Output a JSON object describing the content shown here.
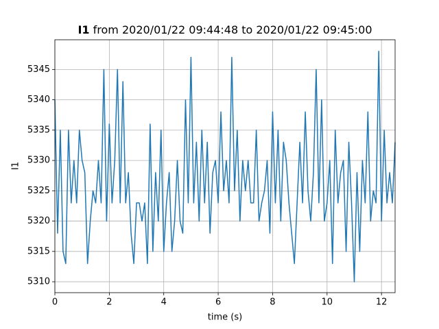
{
  "chart_data": {
    "type": "line",
    "title_variable": "I1",
    "title": "from 2020/01/22 09:44:48 to 2020/01/22 09:45:00",
    "x_label": "time (s)",
    "y_label": "I1",
    "x": [
      0,
      0.1,
      0.2,
      0.3,
      0.4,
      0.5,
      0.6,
      0.7,
      0.8,
      0.9,
      1,
      1.1,
      1.2,
      1.3,
      1.4,
      1.5,
      1.6,
      1.7,
      1.8,
      1.9,
      2,
      2.1,
      2.2,
      2.3,
      2.4,
      2.5,
      2.6,
      2.7,
      2.8,
      2.9,
      3,
      3.1,
      3.2,
      3.3,
      3.4,
      3.5,
      3.6,
      3.7,
      3.8,
      3.9,
      4,
      4.1,
      4.2,
      4.3,
      4.4,
      4.5,
      4.6,
      4.7,
      4.8,
      4.9,
      5,
      5.1,
      5.2,
      5.3,
      5.4,
      5.5,
      5.6,
      5.7,
      5.8,
      5.9,
      6,
      6.1,
      6.2,
      6.3,
      6.4,
      6.5,
      6.6,
      6.7,
      6.8,
      6.9,
      7,
      7.1,
      7.2,
      7.3,
      7.4,
      7.5,
      7.6,
      7.7,
      7.8,
      7.9,
      8,
      8.1,
      8.2,
      8.3,
      8.4,
      8.5,
      8.6,
      8.7,
      8.8,
      8.9,
      9,
      9.1,
      9.2,
      9.3,
      9.4,
      9.5,
      9.6,
      9.7,
      9.8,
      9.9,
      10,
      10.1,
      10.2,
      10.3,
      10.4,
      10.5,
      10.6,
      10.7,
      10.8,
      10.9,
      11,
      11.1,
      11.2,
      11.3,
      11.4,
      11.5,
      11.6,
      11.7,
      11.8,
      11.9,
      12,
      12.1,
      12.2,
      12.3,
      12.4,
      12.5
    ],
    "values": [
      5340,
      5318,
      5335,
      5315,
      5313,
      5335,
      5323,
      5330,
      5323,
      5335,
      5330,
      5328,
      5313,
      5320,
      5325,
      5323,
      5330,
      5323,
      5345,
      5320,
      5336,
      5323,
      5330,
      5345,
      5323,
      5343,
      5323,
      5328,
      5318,
      5313,
      5323,
      5323,
      5320,
      5323,
      5313,
      5336,
      5315,
      5328,
      5320,
      5335,
      5315,
      5323,
      5328,
      5315,
      5320,
      5330,
      5320,
      5318,
      5340,
      5323,
      5347,
      5323,
      5333,
      5320,
      5335,
      5323,
      5333,
      5318,
      5328,
      5330,
      5323,
      5338,
      5325,
      5330,
      5323,
      5347,
      5325,
      5335,
      5320,
      5330,
      5325,
      5330,
      5323,
      5323,
      5335,
      5320,
      5323,
      5325,
      5330,
      5318,
      5338,
      5323,
      5335,
      5320,
      5333,
      5330,
      5323,
      5318,
      5313,
      5323,
      5333,
      5323,
      5338,
      5325,
      5320,
      5328,
      5345,
      5323,
      5340,
      5320,
      5323,
      5330,
      5313,
      5335,
      5323,
      5328,
      5330,
      5315,
      5333,
      5323,
      5310,
      5328,
      5315,
      5330,
      5323,
      5338,
      5320,
      5325,
      5323,
      5348,
      5320,
      5335,
      5323,
      5328,
      5323,
      5333
    ],
    "color": "#1f77b4",
    "xlim": [
      0,
      12.5
    ],
    "xticks": [
      0,
      2,
      4,
      6,
      8,
      10,
      12
    ],
    "ylim": [
      5308.2,
      5349.9
    ],
    "yticks": [
      5310,
      5315,
      5320,
      5325,
      5330,
      5335,
      5340,
      5345
    ],
    "grid": true
  }
}
